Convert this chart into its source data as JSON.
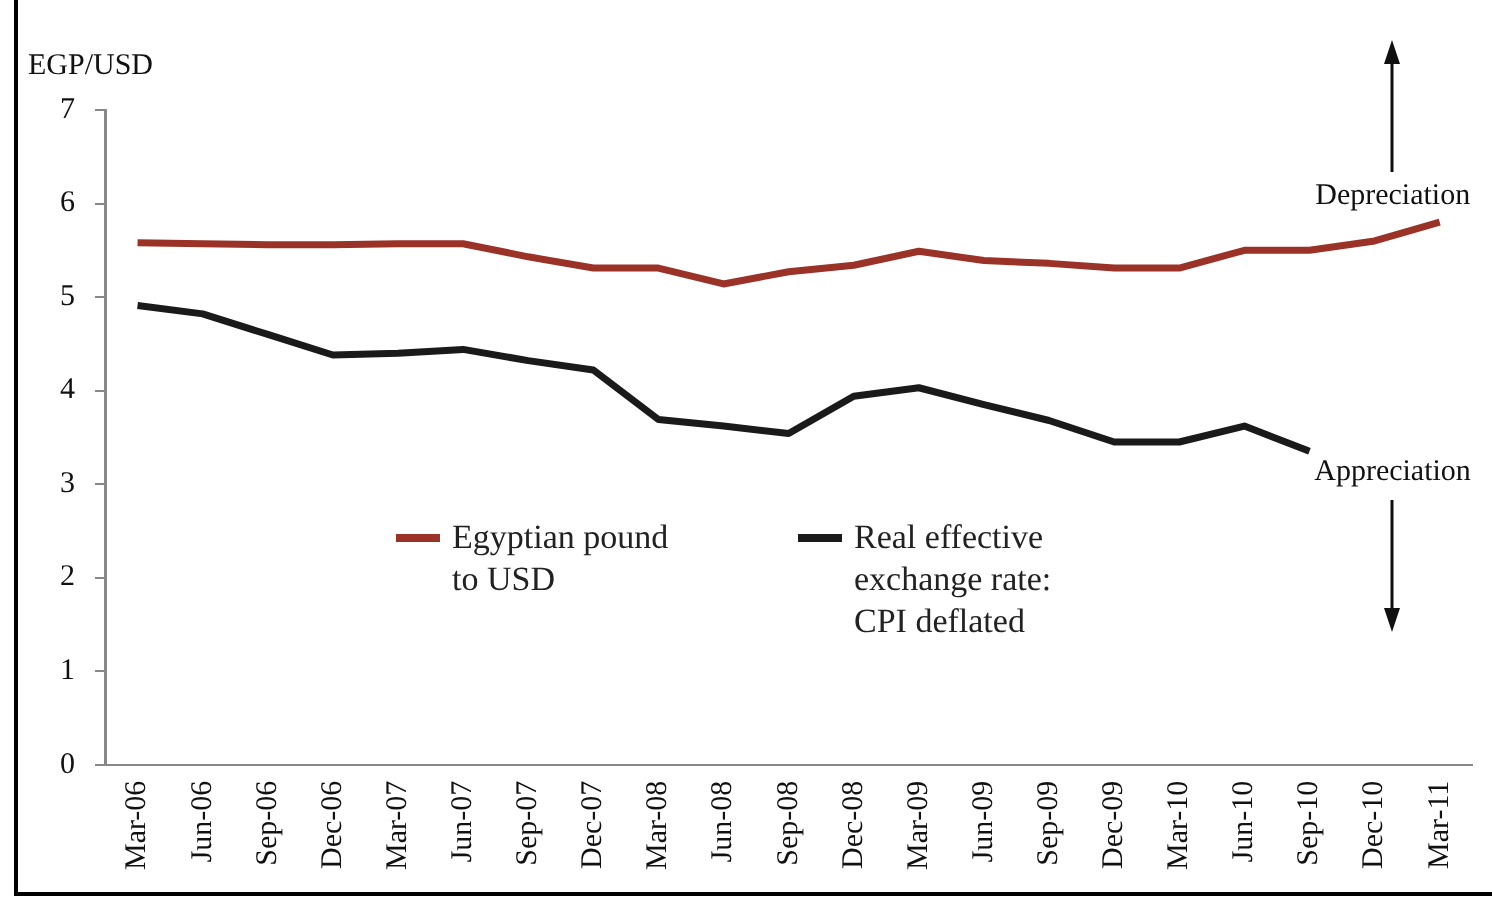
{
  "chart_data": {
    "type": "line",
    "ylabel": "EGP/USD",
    "categories": [
      "Mar-06",
      "Jun-06",
      "Sep-06",
      "Dec-06",
      "Mar-07",
      "Jun-07",
      "Sep-07",
      "Dec-07",
      "Mar-08",
      "Jun-08",
      "Sep-08",
      "Dec-08",
      "Mar-09",
      "Jun-09",
      "Sep-09",
      "Dec-09",
      "Mar-10",
      "Jun-10",
      "Sep-10",
      "Dec-10",
      "Mar-11"
    ],
    "series": [
      {
        "name": "Egyptian pound to USD",
        "color": "#9b3228",
        "values": [
          5.58,
          5.57,
          5.56,
          5.56,
          5.57,
          5.57,
          5.43,
          5.31,
          5.31,
          5.14,
          5.27,
          5.34,
          5.49,
          5.39,
          5.36,
          5.31,
          5.31,
          5.5,
          5.5,
          5.6,
          5.8
        ]
      },
      {
        "name": "Real effective exchange rate: CPI deflated",
        "color": "#1a1a1a",
        "values": [
          4.91,
          4.82,
          4.6,
          4.38,
          4.4,
          4.44,
          4.32,
          4.22,
          3.69,
          3.62,
          3.54,
          3.94,
          4.03,
          3.85,
          3.68,
          3.45,
          3.45,
          3.62,
          3.35,
          null,
          null
        ]
      }
    ],
    "ylim": [
      0,
      7
    ],
    "yticks": [
      0,
      1,
      2,
      3,
      4,
      5,
      6,
      7
    ],
    "grid": false,
    "legend": "center",
    "marker": "none",
    "line_style": "solid",
    "annotations": [
      "Depreciation",
      "Appreciation"
    ]
  }
}
